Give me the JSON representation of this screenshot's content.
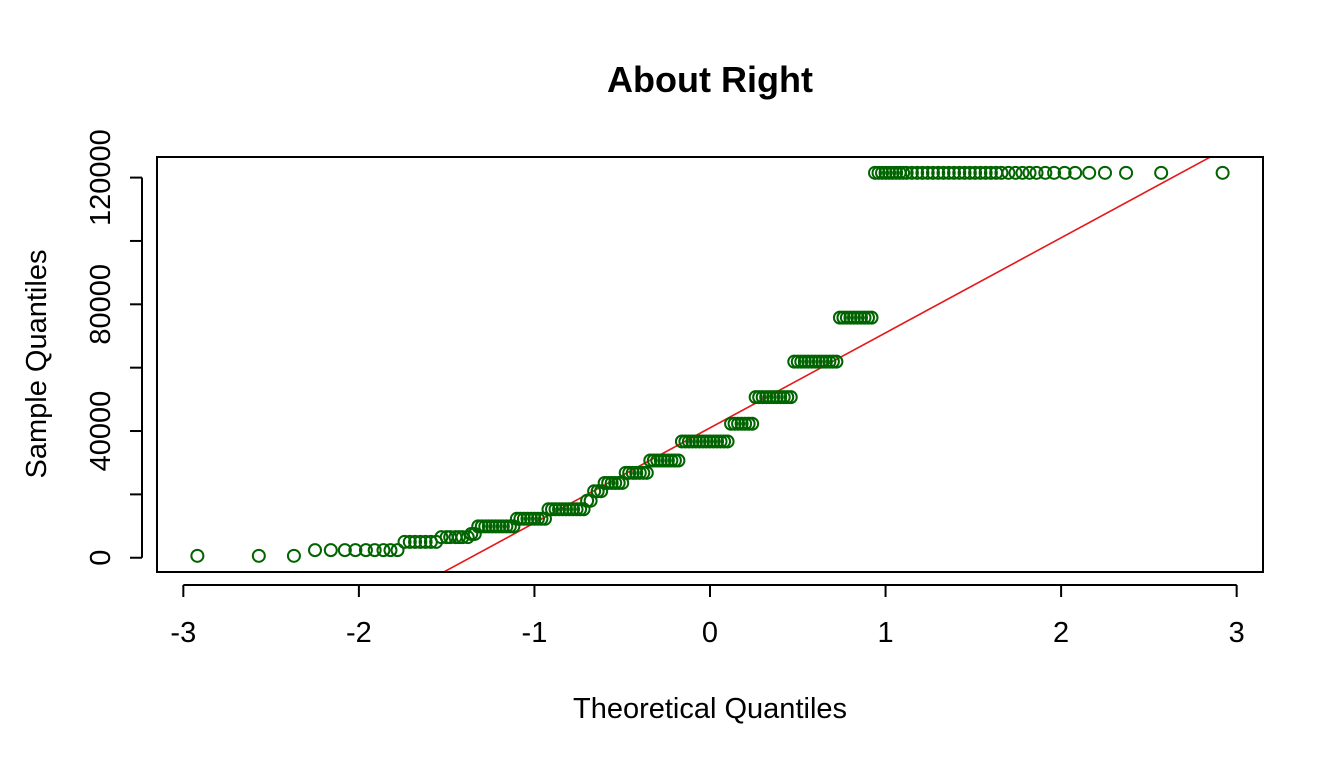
{
  "chart_data": {
    "type": "scatter",
    "title": "About Right",
    "xlabel": "Theoretical Quantiles",
    "ylabel": "Sample Quantiles",
    "xlim": [
      -3.15,
      3.15
    ],
    "ylim": [
      -4500,
      126500
    ],
    "x_ticks": [
      -3,
      -2,
      -1,
      0,
      1,
      2,
      3
    ],
    "x_tick_labels": [
      "-3",
      "-2",
      "-1",
      "0",
      "1",
      "2",
      "3"
    ],
    "y_ticks": [
      0,
      20000,
      40000,
      60000,
      80000,
      100000,
      120000
    ],
    "y_tick_labels": [
      "0",
      "",
      "40000",
      "",
      "80000",
      "",
      "120000"
    ],
    "grid": false,
    "legend": "none",
    "colors": {
      "points": "#006400",
      "reference_line": "#e41a1c"
    },
    "reference_line": {
      "slope": 30000,
      "intercept": 41000
    },
    "series": [
      {
        "points": [
          [
            -2.92,
            600
          ],
          [
            -2.57,
            600
          ],
          [
            -2.37,
            600
          ],
          [
            -2.25,
            2400
          ],
          [
            -2.16,
            2400
          ],
          [
            -2.08,
            2400
          ],
          [
            -2.02,
            2400
          ],
          [
            -1.96,
            2400
          ],
          [
            -1.91,
            2400
          ],
          [
            -1.86,
            2400
          ],
          [
            -1.82,
            2400
          ],
          [
            -1.78,
            2400
          ],
          [
            -1.74,
            5000
          ],
          [
            -1.71,
            5000
          ],
          [
            -1.68,
            5000
          ],
          [
            -1.65,
            5000
          ],
          [
            -1.62,
            5000
          ],
          [
            -1.59,
            5000
          ],
          [
            -1.56,
            5000
          ],
          [
            -1.53,
            6500
          ],
          [
            -1.5,
            6500
          ],
          [
            -1.48,
            6500
          ],
          [
            -1.45,
            6500
          ],
          [
            -1.43,
            6500
          ],
          [
            -1.41,
            6500
          ],
          [
            -1.38,
            6500
          ],
          [
            -1.36,
            7500
          ],
          [
            -1.34,
            7500
          ],
          [
            -1.32,
            9900
          ],
          [
            -1.3,
            9900
          ],
          [
            -1.28,
            9900
          ],
          [
            -1.26,
            9900
          ],
          [
            -1.24,
            9900
          ],
          [
            -1.22,
            9900
          ],
          [
            -1.2,
            9900
          ],
          [
            -1.18,
            9900
          ],
          [
            -1.16,
            9900
          ],
          [
            -1.14,
            9900
          ],
          [
            -1.12,
            9900
          ],
          [
            -1.1,
            12300
          ],
          [
            -1.08,
            12300
          ],
          [
            -1.06,
            12300
          ],
          [
            -1.04,
            12300
          ],
          [
            -1.02,
            12300
          ],
          [
            -1.0,
            12300
          ],
          [
            -0.98,
            12300
          ],
          [
            -0.96,
            12300
          ],
          [
            -0.94,
            12300
          ],
          [
            -0.92,
            15300
          ],
          [
            -0.9,
            15300
          ],
          [
            -0.88,
            15300
          ],
          [
            -0.86,
            15300
          ],
          [
            -0.84,
            15300
          ],
          [
            -0.82,
            15300
          ],
          [
            -0.8,
            15300
          ],
          [
            -0.78,
            15300
          ],
          [
            -0.76,
            15300
          ],
          [
            -0.74,
            15300
          ],
          [
            -0.72,
            15300
          ],
          [
            -0.7,
            18000
          ],
          [
            -0.68,
            18000
          ],
          [
            -0.66,
            21000
          ],
          [
            -0.64,
            21000
          ],
          [
            -0.62,
            21000
          ],
          [
            -0.6,
            23600
          ],
          [
            -0.58,
            23600
          ],
          [
            -0.56,
            23600
          ],
          [
            -0.54,
            23600
          ],
          [
            -0.52,
            23600
          ],
          [
            -0.5,
            23600
          ],
          [
            -0.48,
            26800
          ],
          [
            -0.46,
            26800
          ],
          [
            -0.44,
            26800
          ],
          [
            -0.42,
            26800
          ],
          [
            -0.4,
            26800
          ],
          [
            -0.38,
            26800
          ],
          [
            -0.36,
            26800
          ],
          [
            -0.34,
            30700
          ],
          [
            -0.32,
            30700
          ],
          [
            -0.3,
            30700
          ],
          [
            -0.28,
            30700
          ],
          [
            -0.26,
            30700
          ],
          [
            -0.24,
            30700
          ],
          [
            -0.22,
            30700
          ],
          [
            -0.2,
            30700
          ],
          [
            -0.18,
            30700
          ],
          [
            -0.16,
            36700
          ],
          [
            -0.14,
            36700
          ],
          [
            -0.12,
            36700
          ],
          [
            -0.1,
            36700
          ],
          [
            -0.08,
            36700
          ],
          [
            -0.06,
            36700
          ],
          [
            -0.04,
            36700
          ],
          [
            -0.02,
            36700
          ],
          [
            0.0,
            36700
          ],
          [
            0.02,
            36700
          ],
          [
            0.04,
            36700
          ],
          [
            0.06,
            36700
          ],
          [
            0.08,
            36700
          ],
          [
            0.1,
            36700
          ],
          [
            0.12,
            42300
          ],
          [
            0.14,
            42300
          ],
          [
            0.16,
            42300
          ],
          [
            0.18,
            42300
          ],
          [
            0.2,
            42300
          ],
          [
            0.22,
            42300
          ],
          [
            0.24,
            42300
          ],
          [
            0.26,
            50700
          ],
          [
            0.28,
            50700
          ],
          [
            0.3,
            50700
          ],
          [
            0.32,
            50700
          ],
          [
            0.34,
            50700
          ],
          [
            0.36,
            50700
          ],
          [
            0.38,
            50700
          ],
          [
            0.4,
            50700
          ],
          [
            0.42,
            50700
          ],
          [
            0.44,
            50700
          ],
          [
            0.46,
            50700
          ],
          [
            0.48,
            61900
          ],
          [
            0.5,
            61900
          ],
          [
            0.52,
            61900
          ],
          [
            0.54,
            61900
          ],
          [
            0.56,
            61900
          ],
          [
            0.58,
            61900
          ],
          [
            0.6,
            61900
          ],
          [
            0.62,
            61900
          ],
          [
            0.64,
            61900
          ],
          [
            0.66,
            61900
          ],
          [
            0.68,
            61900
          ],
          [
            0.7,
            61900
          ],
          [
            0.72,
            61900
          ],
          [
            0.74,
            75800
          ],
          [
            0.76,
            75800
          ],
          [
            0.78,
            75800
          ],
          [
            0.8,
            75800
          ],
          [
            0.82,
            75800
          ],
          [
            0.84,
            75800
          ],
          [
            0.86,
            75800
          ],
          [
            0.88,
            75800
          ],
          [
            0.9,
            75800
          ],
          [
            0.92,
            75800
          ],
          [
            0.94,
            121500
          ],
          [
            0.96,
            121500
          ],
          [
            0.98,
            121500
          ],
          [
            1.0,
            121500
          ],
          [
            1.02,
            121500
          ],
          [
            1.04,
            121500
          ],
          [
            1.06,
            121500
          ],
          [
            1.08,
            121500
          ],
          [
            1.1,
            121500
          ],
          [
            1.12,
            121500
          ],
          [
            1.15,
            121500
          ],
          [
            1.18,
            121500
          ],
          [
            1.21,
            121500
          ],
          [
            1.24,
            121500
          ],
          [
            1.27,
            121500
          ],
          [
            1.3,
            121500
          ],
          [
            1.33,
            121500
          ],
          [
            1.36,
            121500
          ],
          [
            1.39,
            121500
          ],
          [
            1.42,
            121500
          ],
          [
            1.45,
            121500
          ],
          [
            1.48,
            121500
          ],
          [
            1.51,
            121500
          ],
          [
            1.54,
            121500
          ],
          [
            1.57,
            121500
          ],
          [
            1.6,
            121500
          ],
          [
            1.63,
            121500
          ],
          [
            1.66,
            121500
          ],
          [
            1.7,
            121500
          ],
          [
            1.74,
            121500
          ],
          [
            1.78,
            121500
          ],
          [
            1.82,
            121500
          ],
          [
            1.86,
            121500
          ],
          [
            1.91,
            121500
          ],
          [
            1.96,
            121500
          ],
          [
            2.02,
            121500
          ],
          [
            2.08,
            121500
          ],
          [
            2.16,
            121500
          ],
          [
            2.25,
            121500
          ],
          [
            2.37,
            121500
          ],
          [
            2.57,
            121500
          ],
          [
            2.92,
            121500
          ]
        ]
      }
    ]
  }
}
